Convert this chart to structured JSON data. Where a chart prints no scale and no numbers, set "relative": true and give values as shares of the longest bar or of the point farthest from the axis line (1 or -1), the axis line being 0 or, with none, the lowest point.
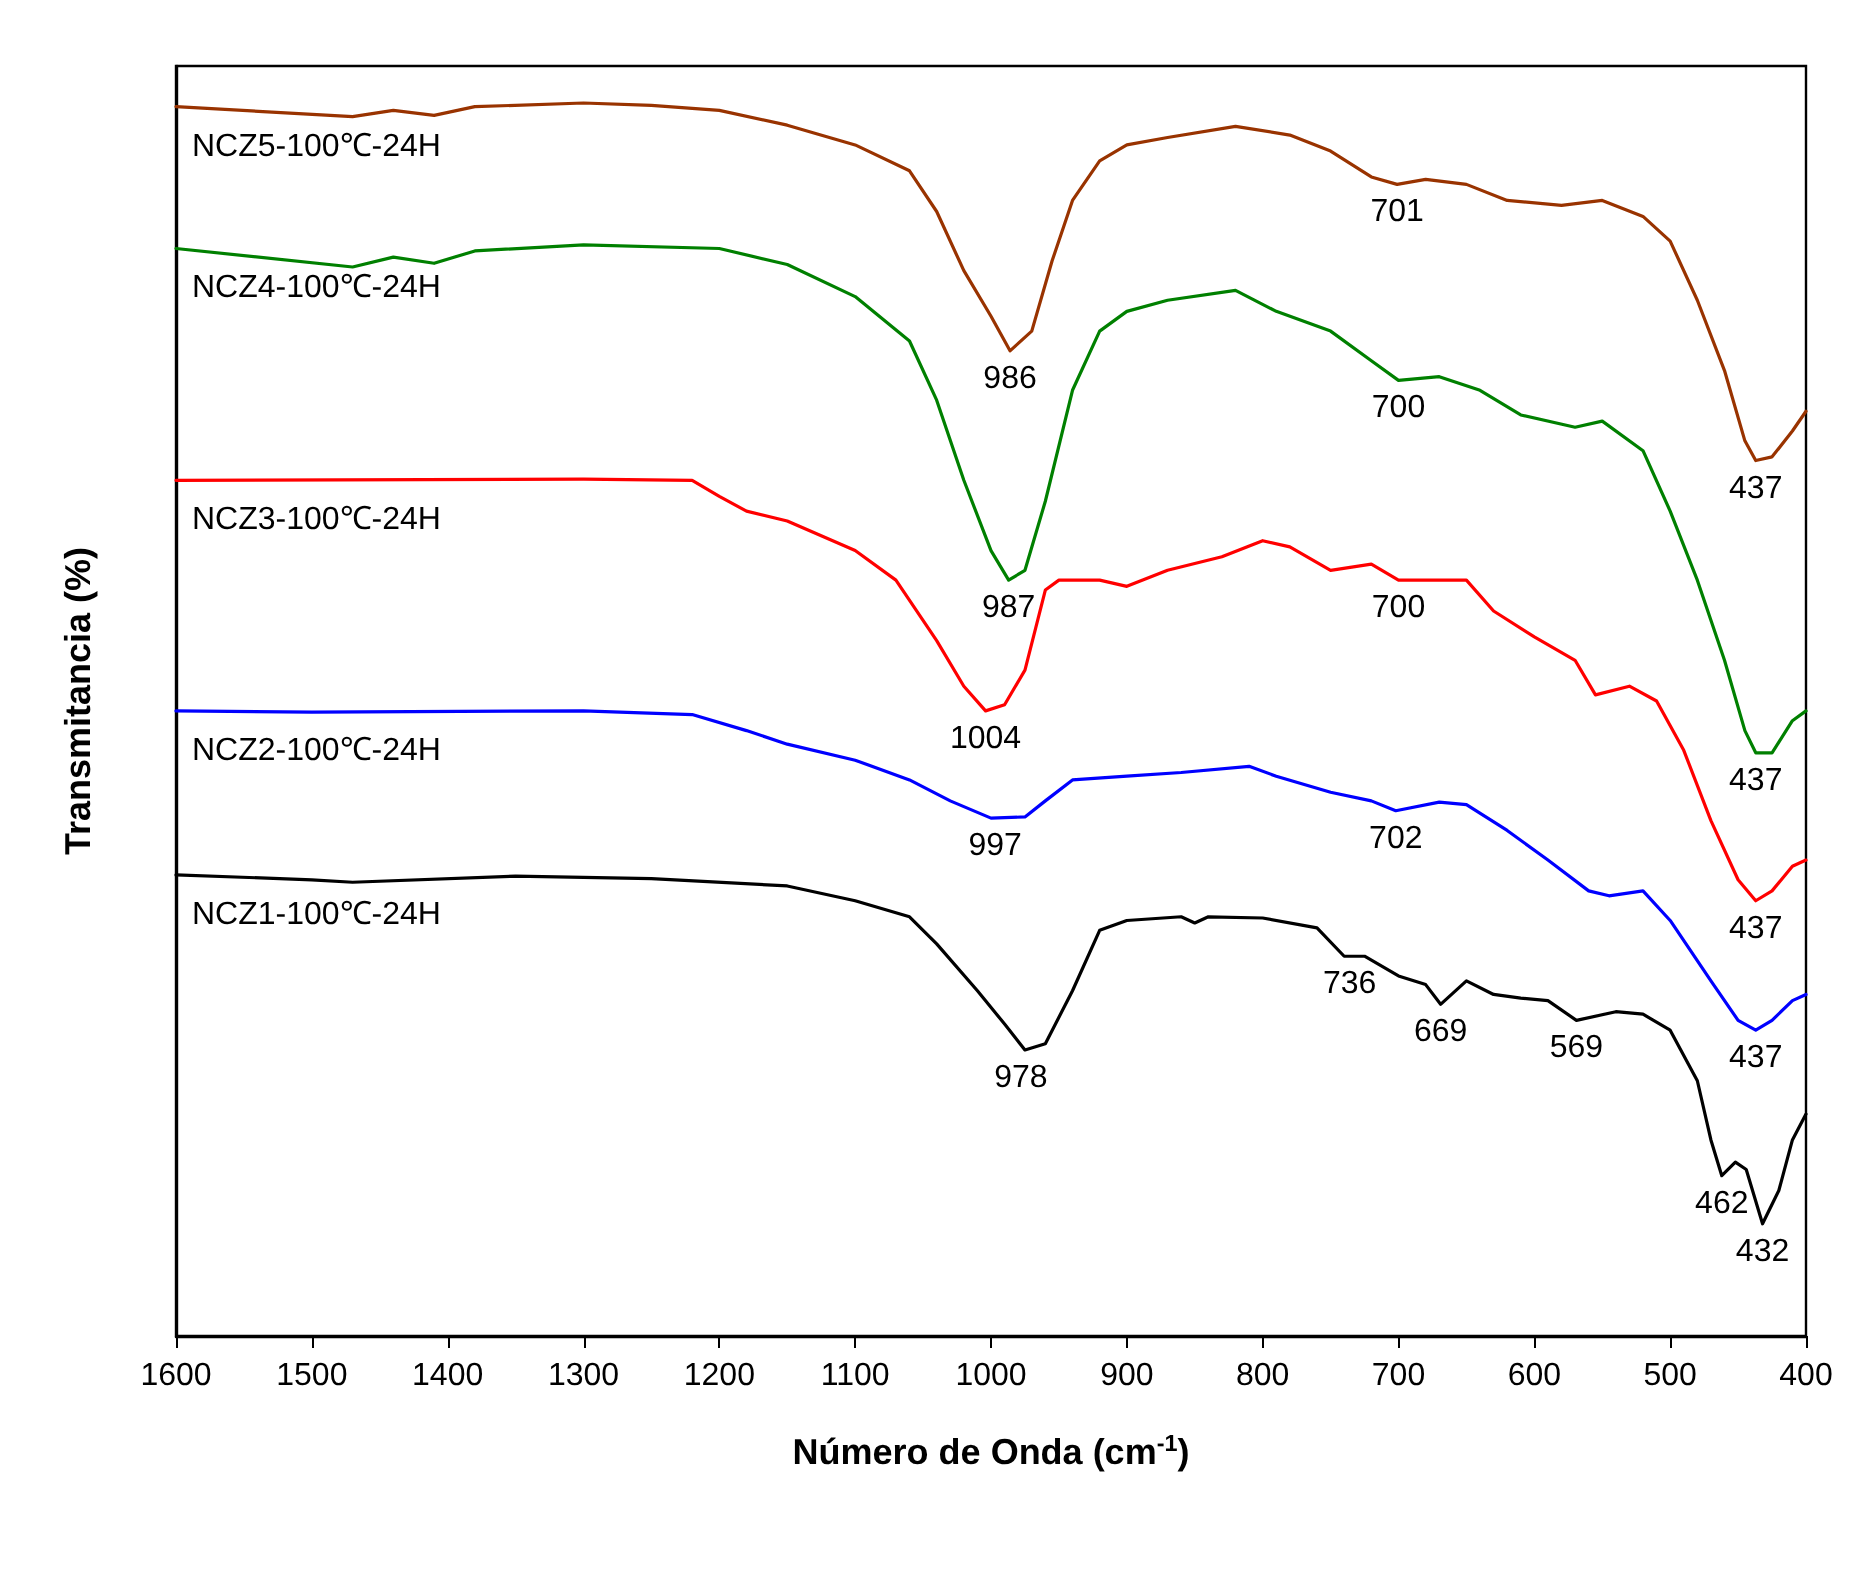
{
  "chart_data": {
    "type": "line",
    "relative": true,
    "xlabel": "Número de Onda (cm$^{-1}$)",
    "ylabel": "Transmitancia (%)",
    "xlim": [
      1600,
      400
    ],
    "xticks": [
      1600,
      1500,
      1400,
      1300,
      1200,
      1100,
      1000,
      900,
      800,
      700,
      600,
      500,
      400
    ],
    "grid": false,
    "legend": false,
    "series": [
      {
        "name": "NCZ5-100℃-24H",
        "color": "#993300",
        "x": [
          1600,
          1470,
          1440,
          1410,
          1380,
          1300,
          1250,
          1200,
          1150,
          1100,
          1060,
          1040,
          1020,
          1000,
          986,
          970,
          955,
          940,
          920,
          900,
          870,
          820,
          780,
          750,
          720,
          701,
          680,
          650,
          620,
          580,
          550,
          520,
          500,
          480,
          460,
          445,
          437,
          425,
          410,
          400
        ],
        "values": [
          0.997,
          0.989,
          0.994,
          0.99,
          0.997,
          1,
          0.998,
          0.994,
          0.982,
          0.966,
          0.945,
          0.912,
          0.864,
          0.827,
          0.799,
          0.815,
          0.872,
          0.921,
          0.953,
          0.966,
          0.972,
          0.981,
          0.974,
          0.961,
          0.94,
          0.934,
          0.938,
          0.934,
          0.921,
          0.917,
          0.921,
          0.908,
          0.888,
          0.84,
          0.783,
          0.726,
          0.71,
          0.713,
          0.734,
          0.75
        ]
      },
      {
        "name": "NCZ4-100℃-24H",
        "color": "#008000",
        "x": [
          1600,
          1470,
          1440,
          1410,
          1380,
          1300,
          1200,
          1150,
          1100,
          1060,
          1040,
          1020,
          1000,
          987,
          975,
          960,
          940,
          920,
          900,
          870,
          820,
          790,
          750,
          720,
          700,
          670,
          640,
          610,
          570,
          550,
          520,
          500,
          480,
          460,
          445,
          437,
          425,
          410,
          400
        ],
        "values": [
          0.882,
          0.867,
          0.875,
          0.87,
          0.88,
          0.885,
          0.882,
          0.869,
          0.843,
          0.807,
          0.759,
          0.694,
          0.637,
          0.613,
          0.621,
          0.677,
          0.767,
          0.815,
          0.831,
          0.84,
          0.848,
          0.831,
          0.815,
          0.791,
          0.775,
          0.778,
          0.767,
          0.747,
          0.737,
          0.742,
          0.718,
          0.669,
          0.613,
          0.548,
          0.491,
          0.473,
          0.473,
          0.499,
          0.507
        ]
      },
      {
        "name": "NCZ3-100℃-24H",
        "color": "#ff0000",
        "x": [
          1600,
          1300,
          1220,
          1200,
          1180,
          1150,
          1100,
          1070,
          1040,
          1020,
          1004,
          990,
          975,
          960,
          950,
          920,
          900,
          870,
          830,
          800,
          780,
          750,
          720,
          700,
          670,
          650,
          630,
          600,
          570,
          555,
          530,
          510,
          490,
          470,
          450,
          437,
          425,
          410,
          400
        ],
        "values": [
          0.694,
          0.695,
          0.694,
          0.681,
          0.669,
          0.661,
          0.637,
          0.613,
          0.564,
          0.527,
          0.507,
          0.512,
          0.54,
          0.605,
          0.613,
          0.613,
          0.608,
          0.621,
          0.632,
          0.645,
          0.64,
          0.621,
          0.626,
          0.613,
          0.613,
          0.613,
          0.588,
          0.567,
          0.548,
          0.52,
          0.527,
          0.515,
          0.475,
          0.418,
          0.37,
          0.353,
          0.361,
          0.381,
          0.386
        ]
      },
      {
        "name": "NCZ2-100℃-24H",
        "color": "#0000ff",
        "x": [
          1600,
          1500,
          1300,
          1220,
          1180,
          1150,
          1100,
          1060,
          1030,
          1000,
          975,
          960,
          940,
          900,
          860,
          810,
          790,
          750,
          720,
          702,
          670,
          650,
          620,
          590,
          560,
          545,
          520,
          500,
          470,
          450,
          437,
          425,
          410,
          400
        ],
        "values": [
          0.507,
          0.506,
          0.507,
          0.504,
          0.491,
          0.48,
          0.467,
          0.451,
          0.434,
          0.42,
          0.421,
          0.434,
          0.451,
          0.454,
          0.457,
          0.462,
          0.454,
          0.441,
          0.434,
          0.426,
          0.433,
          0.431,
          0.41,
          0.386,
          0.361,
          0.357,
          0.361,
          0.337,
          0.288,
          0.256,
          0.248,
          0.256,
          0.272,
          0.277
        ]
      },
      {
        "name": "NCZ1-100℃-24H",
        "color": "#000000",
        "x": [
          1600,
          1500,
          1470,
          1350,
          1250,
          1150,
          1100,
          1060,
          1040,
          1010,
          990,
          975,
          960,
          940,
          920,
          900,
          860,
          850,
          840,
          800,
          760,
          740,
          725,
          700,
          680,
          669,
          650,
          630,
          610,
          590,
          569,
          540,
          520,
          500,
          480,
          470,
          462,
          452,
          444,
          432,
          420,
          410,
          400
        ],
        "values": [
          0.374,
          0.37,
          0.368,
          0.373,
          0.371,
          0.365,
          0.353,
          0.34,
          0.318,
          0.28,
          0.253,
          0.232,
          0.237,
          0.28,
          0.329,
          0.337,
          0.34,
          0.335,
          0.34,
          0.339,
          0.331,
          0.308,
          0.308,
          0.292,
          0.285,
          0.269,
          0.288,
          0.277,
          0.274,
          0.272,
          0.256,
          0.263,
          0.261,
          0.248,
          0.207,
          0.159,
          0.13,
          0.141,
          0.135,
          0.091,
          0.118,
          0.159,
          0.18
        ]
      }
    ],
    "annotations": [
      {
        "text": "986",
        "x": 986,
        "y": 0.799
      },
      {
        "text": "701",
        "x": 701,
        "y": 0.934
      },
      {
        "text": "437",
        "x": 437,
        "y": 0.71
      },
      {
        "text": "987",
        "x": 987,
        "y": 0.613
      },
      {
        "text": "700",
        "x": 700,
        "y": 0.775
      },
      {
        "text": "437",
        "x": 437,
        "y": 0.473
      },
      {
        "text": "1004",
        "x": 1004,
        "y": 0.507
      },
      {
        "text": "700",
        "x": 700,
        "y": 0.613
      },
      {
        "text": "437",
        "x": 437,
        "y": 0.353
      },
      {
        "text": "997",
        "x": 997,
        "y": 0.42
      },
      {
        "text": "702",
        "x": 702,
        "y": 0.426
      },
      {
        "text": "437",
        "x": 437,
        "y": 0.248
      },
      {
        "text": "978",
        "x": 978,
        "y": 0.232
      },
      {
        "text": "736",
        "x": 736,
        "y": 0.308
      },
      {
        "text": "669",
        "x": 669,
        "y": 0.269
      },
      {
        "text": "569",
        "x": 569,
        "y": 0.256
      },
      {
        "text": "462",
        "x": 462,
        "y": 0.13
      },
      {
        "text": "432",
        "x": 432,
        "y": 0.091
      }
    ]
  }
}
